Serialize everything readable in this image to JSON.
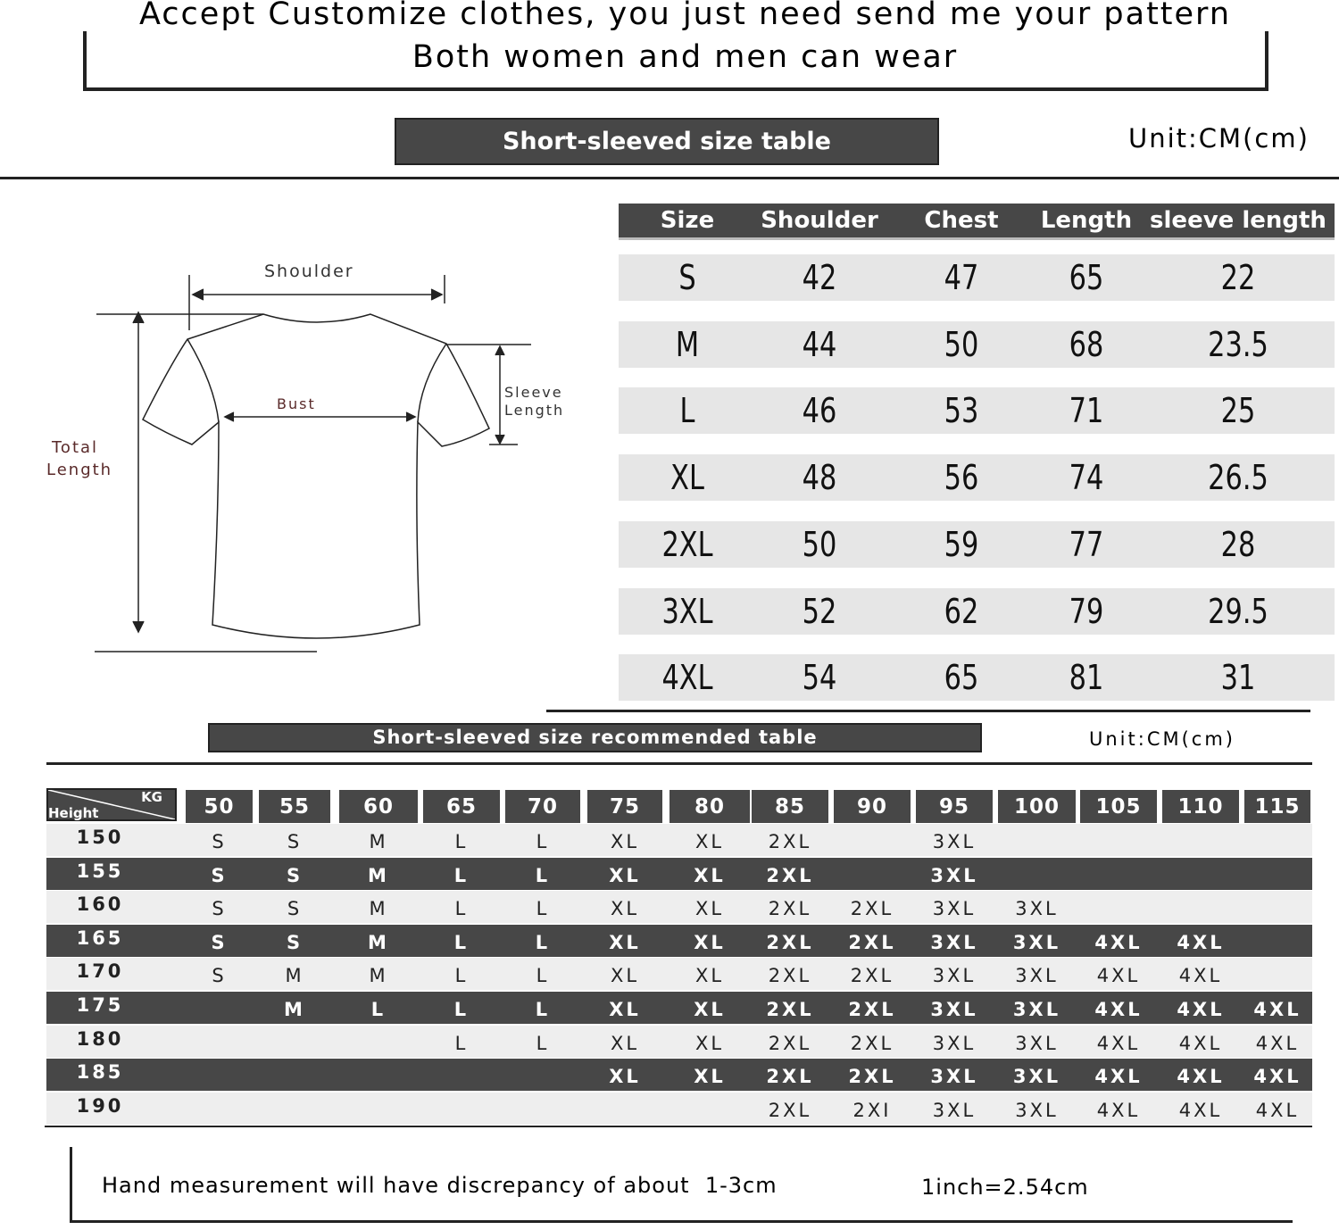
{
  "header": {
    "line1": "Accept Customize clothes, you just need send me your pattern",
    "line2": "Both women and men can wear"
  },
  "size_table": {
    "title": "Short-sleeved size  table",
    "unit": "Unit:CM(cm)",
    "columns": [
      "Size",
      "Shoulder",
      "Chest",
      "Length",
      "sleeve length"
    ],
    "rows": [
      [
        "S",
        42,
        47,
        65,
        22
      ],
      [
        "M",
        44,
        50,
        68,
        23.5
      ],
      [
        "L",
        46,
        53,
        71,
        25
      ],
      [
        "XL",
        48,
        56,
        74,
        26.5
      ],
      [
        "2XL",
        50,
        59,
        77,
        28
      ],
      [
        "3XL",
        52,
        62,
        79,
        29.5
      ],
      [
        "4XL",
        54,
        65,
        81,
        31
      ]
    ]
  },
  "diagram": {
    "shoulder": "Shoulder",
    "bust": "Bust",
    "sleeve_length": [
      "Sleeve",
      "Length"
    ],
    "total_length": [
      "Total",
      "Length"
    ]
  },
  "recommend_table": {
    "title": "Short-sleeved size recommended table",
    "unit": "Unit:CM(cm)",
    "corner_kg": "KG",
    "corner_height": "Height",
    "weights": [
      50,
      55,
      60,
      65,
      70,
      75,
      80,
      85,
      90,
      95,
      100,
      105,
      110,
      115
    ],
    "rows": [
      {
        "height": 150,
        "sizes": [
          "S",
          "S",
          "M",
          "L",
          "L",
          "XL",
          "XL",
          "2XL",
          null,
          "3XL",
          null,
          null,
          null,
          null
        ]
      },
      {
        "height": 155,
        "sizes": [
          "S",
          "S",
          "M",
          "L",
          "L",
          "XL",
          "XL",
          "2XL",
          null,
          "3XL",
          null,
          null,
          null,
          null
        ]
      },
      {
        "height": 160,
        "sizes": [
          "S",
          "S",
          "M",
          "L",
          "L",
          "XL",
          "XL",
          "2XL",
          "2XL",
          "3XL",
          "3XL",
          null,
          null,
          null
        ]
      },
      {
        "height": 165,
        "sizes": [
          "S",
          "S",
          "M",
          "L",
          "L",
          "XL",
          "XL",
          "2XL",
          "2XL",
          "3XL",
          "3XL",
          "4XL",
          "4XL",
          null
        ]
      },
      {
        "height": 170,
        "sizes": [
          "S",
          "M",
          "M",
          "L",
          "L",
          "XL",
          "XL",
          "2XL",
          "2XL",
          "3XL",
          "3XL",
          "4XL",
          "4XL",
          null
        ]
      },
      {
        "height": 175,
        "sizes": [
          null,
          "M",
          "L",
          "L",
          "L",
          "XL",
          "XL",
          "2XL",
          "2XL",
          "3XL",
          "3XL",
          "4XL",
          "4XL",
          "4XL"
        ]
      },
      {
        "height": 180,
        "sizes": [
          null,
          null,
          null,
          "L",
          "L",
          "XL",
          "XL",
          "2XL",
          "2XL",
          "3XL",
          "3XL",
          "4XL",
          "4XL",
          "4XL"
        ]
      },
      {
        "height": 185,
        "sizes": [
          null,
          null,
          null,
          null,
          null,
          "XL",
          "XL",
          "2XL",
          "2XL",
          "3XL",
          "3XL",
          "4XL",
          "4XL",
          "4XL"
        ]
      },
      {
        "height": 190,
        "sizes": [
          null,
          null,
          null,
          null,
          null,
          null,
          null,
          "2XL",
          "2XI",
          "3XL",
          "3XL",
          "4XL",
          "4XL",
          "4XL"
        ]
      }
    ]
  },
  "footer": {
    "note": "Hand measurement will have discrepancy of about  1-3cm",
    "conversion": "1inch=2.54cm"
  }
}
